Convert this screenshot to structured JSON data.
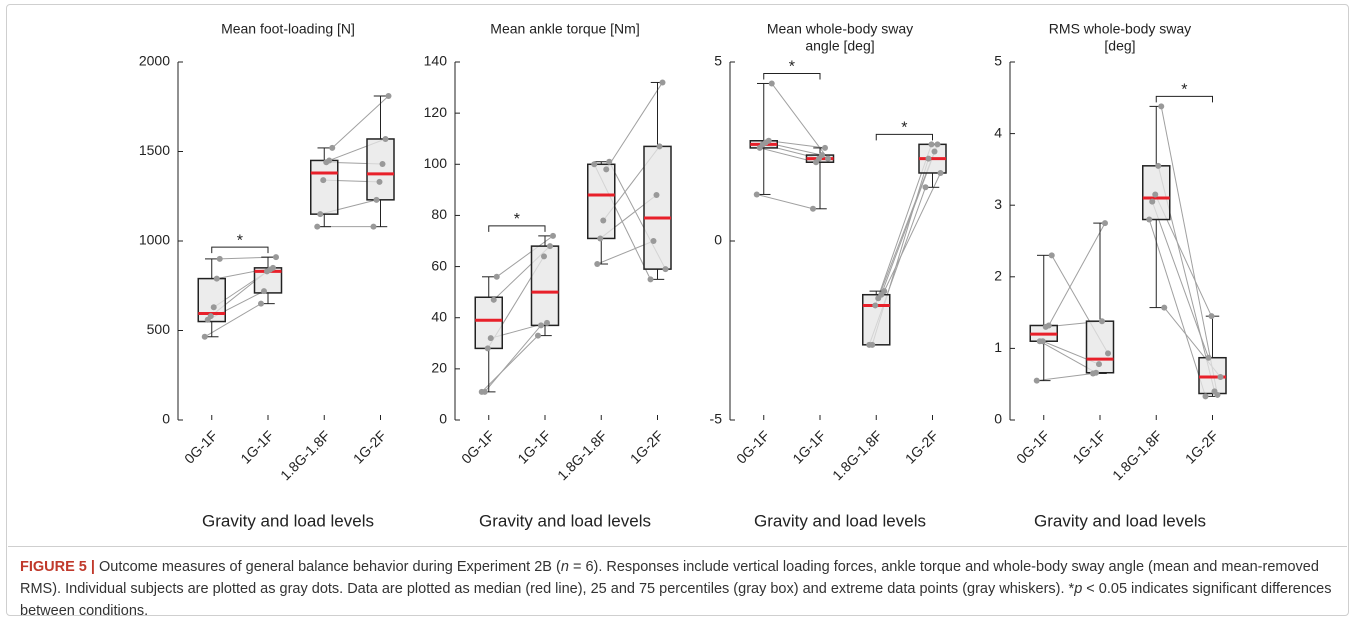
{
  "chart_data": [
    {
      "type": "box",
      "title": [
        "Mean foot-loading [N]"
      ],
      "xlabel": "Gravity and load levels",
      "categories": [
        "0G-1F",
        "1G-1F",
        "1.8G-1.8F",
        "1G-2F"
      ],
      "ylim": [
        0,
        2000
      ],
      "yticks": [
        0,
        500,
        1000,
        1500,
        2000
      ],
      "box_color": "#e6e6e6",
      "median_color": "#e8202a",
      "point_color": "#999999",
      "boxes": [
        {
          "min": 465,
          "q1": 550,
          "median": 595,
          "q3": 790,
          "max": 900
        },
        {
          "min": 650,
          "q1": 710,
          "median": 830,
          "q3": 850,
          "max": 910
        },
        {
          "min": 1080,
          "q1": 1150,
          "median": 1380,
          "q3": 1450,
          "max": 1520
        },
        {
          "min": 1080,
          "q1": 1230,
          "median": 1375,
          "q3": 1570,
          "max": 1810
        }
      ],
      "subjects": [
        [
          900,
          910,
          1520,
          1810
        ],
        [
          790,
          850,
          1450,
          1570
        ],
        [
          630,
          840,
          1440,
          1430
        ],
        [
          580,
          830,
          1340,
          1330
        ],
        [
          560,
          720,
          1150,
          1230
        ],
        [
          465,
          650,
          1080,
          1080
        ]
      ],
      "significance": [
        {
          "between": [
            "0G-1F",
            "1G-1F"
          ],
          "label": "*"
        }
      ]
    },
    {
      "type": "box",
      "title": [
        "Mean ankle torque [Nm]"
      ],
      "xlabel": "Gravity and load levels",
      "categories": [
        "0G-1F",
        "1G-1F",
        "1.8G-1.8F",
        "1G-2F"
      ],
      "ylim": [
        0,
        140
      ],
      "yticks": [
        0,
        20,
        40,
        60,
        80,
        100,
        120,
        140
      ],
      "box_color": "#e6e6e6",
      "median_color": "#e8202a",
      "point_color": "#999999",
      "boxes": [
        {
          "min": 11,
          "q1": 28,
          "median": 39,
          "q3": 48,
          "max": 56
        },
        {
          "min": 33,
          "q1": 37,
          "median": 50,
          "q3": 68,
          "max": 72
        },
        {
          "min": 61,
          "q1": 71,
          "median": 88,
          "q3": 100,
          "max": 101
        },
        {
          "min": 55,
          "q1": 59,
          "median": 79,
          "q3": 107,
          "max": 132
        }
      ],
      "subjects": [
        [
          56,
          72,
          101,
          59
        ],
        [
          47,
          68,
          98,
          132
        ],
        [
          32,
          38,
          78,
          107
        ],
        [
          28,
          64,
          71,
          88
        ],
        [
          11,
          37,
          61,
          70
        ],
        [
          11,
          33,
          100,
          55
        ]
      ],
      "significance": [
        {
          "between": [
            "0G-1F",
            "1G-1F"
          ],
          "label": "*"
        }
      ]
    },
    {
      "type": "box",
      "title": [
        "Mean whole-body sway",
        "angle [deg]"
      ],
      "xlabel": "Gravity and load levels",
      "categories": [
        "0G-1F",
        "1G-1F",
        "1.8G-1.8F",
        "1G-2F"
      ],
      "ylim": [
        -5,
        5
      ],
      "yticks": [
        -5,
        0,
        5
      ],
      "box_color": "#e6e6e6",
      "median_color": "#e8202a",
      "point_color": "#999999",
      "boxes": [
        {
          "min": 1.3,
          "q1": 2.6,
          "median": 2.7,
          "q3": 2.8,
          "max": 4.4
        },
        {
          "min": 0.9,
          "q1": 2.2,
          "median": 2.3,
          "q3": 2.4,
          "max": 2.6
        },
        {
          "min": -2.9,
          "q1": -2.9,
          "median": -1.8,
          "q3": -1.5,
          "max": -1.4
        },
        {
          "min": 1.5,
          "q1": 1.9,
          "median": 2.3,
          "q3": 2.7,
          "max": 2.7
        }
      ],
      "subjects": [
        [
          4.4,
          2.3,
          -1.4,
          1.9
        ],
        [
          2.8,
          2.6,
          -1.5,
          2.7
        ],
        [
          2.75,
          2.4,
          -1.6,
          2.5
        ],
        [
          2.7,
          2.3,
          -1.8,
          2.7
        ],
        [
          2.6,
          2.2,
          -2.9,
          2.3
        ],
        [
          1.3,
          0.9,
          -2.9,
          1.5
        ]
      ],
      "significance": [
        {
          "between": [
            "0G-1F",
            "1G-1F"
          ],
          "label": "*"
        },
        {
          "between": [
            "1.8G-1.8F",
            "1G-2F"
          ],
          "label": "*"
        }
      ]
    },
    {
      "type": "box",
      "title": [
        "RMS whole-body sway",
        "[deg]"
      ],
      "xlabel": "Gravity and load levels",
      "categories": [
        "0G-1F",
        "1G-1F",
        "1.8G-1.8F",
        "1G-2F"
      ],
      "ylim": [
        0,
        5
      ],
      "yticks": [
        0,
        1,
        2,
        3,
        4,
        5
      ],
      "box_color": "#e6e6e6",
      "median_color": "#e8202a",
      "point_color": "#999999",
      "boxes": [
        {
          "min": 0.55,
          "q1": 1.1,
          "median": 1.2,
          "q3": 1.32,
          "max": 2.3
        },
        {
          "min": 0.65,
          "q1": 0.66,
          "median": 0.85,
          "q3": 1.38,
          "max": 2.75
        },
        {
          "min": 1.57,
          "q1": 2.8,
          "median": 3.1,
          "q3": 3.55,
          "max": 4.38
        },
        {
          "min": 0.33,
          "q1": 0.37,
          "median": 0.6,
          "q3": 0.87,
          "max": 1.45
        }
      ],
      "subjects": [
        [
          2.3,
          0.93,
          1.57,
          0.6
        ],
        [
          1.32,
          2.75,
          4.38,
          0.35
        ],
        [
          1.3,
          1.38,
          3.55,
          0.4
        ],
        [
          1.1,
          0.78,
          3.15,
          1.45
        ],
        [
          1.1,
          0.66,
          3.05,
          0.87
        ],
        [
          0.55,
          0.65,
          2.8,
          0.33
        ]
      ],
      "significance": [
        {
          "between": [
            "1.8G-1.8F",
            "1G-2F"
          ],
          "label": "*"
        }
      ]
    }
  ],
  "caption": {
    "label": "FIGURE 5 |",
    "parts": [
      "Outcome measures of general balance behavior during Experiment 2B (",
      "n",
      " = 6). Responses include vertical loading forces, ankle torque and whole-body sway angle (mean and mean-removed RMS). Individual subjects are plotted as gray dots. Data are plotted as median (red line), 25 and 75 percentiles (gray box) and extreme data points (gray whiskers). *",
      "p",
      " < 0.05 indicates significant differences between conditions."
    ]
  }
}
